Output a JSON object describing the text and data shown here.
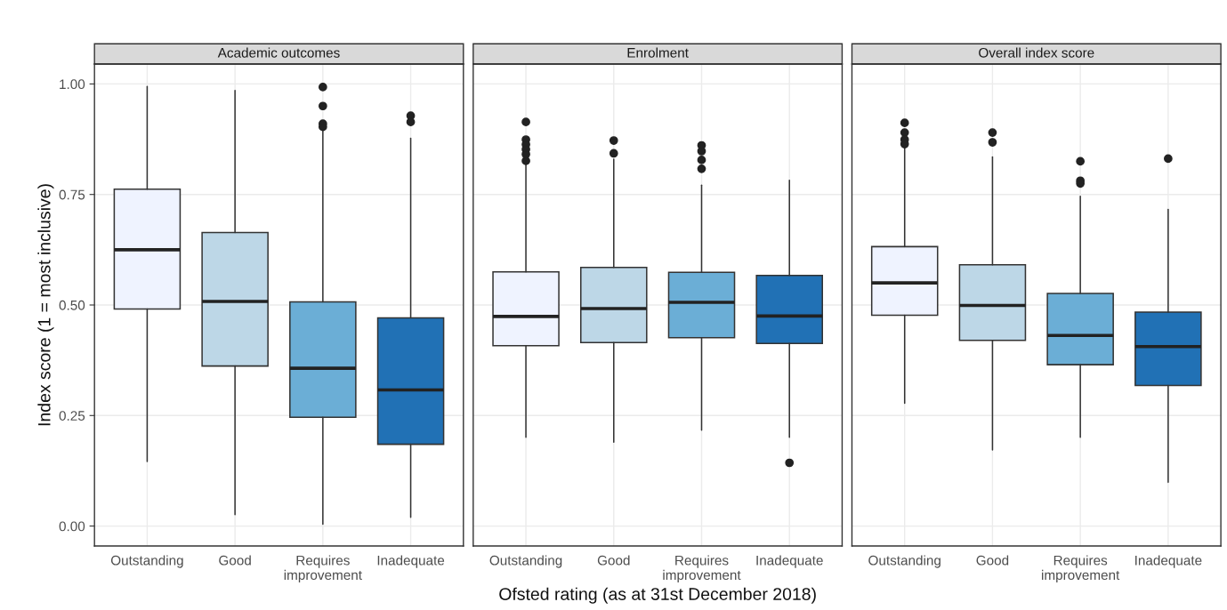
{
  "chart_data": [
    {
      "type": "box",
      "title": "Academic outcomes",
      "ylabel": "Index score (1 = most inclusive)",
      "categories": [
        "Outstanding",
        "Good",
        "Requires\nimprovement",
        "Inadequate"
      ],
      "colors": [
        "#eff3ff",
        "#bdd7e7",
        "#6baed6",
        "#2171b5"
      ],
      "ylim": [
        -0.045,
        1.045
      ],
      "yticks": [
        {
          "value": 0,
          "label": "0.00"
        },
        {
          "value": 0.25,
          "label": "0.25"
        },
        {
          "value": 0.5,
          "label": "0.50"
        },
        {
          "value": 0.75,
          "label": "0.75"
        },
        {
          "value": 1,
          "label": "1.00"
        }
      ],
      "grid": true,
      "boxes": [
        {
          "low": 0.146,
          "q1": 0.491,
          "median": 0.625,
          "q3": 0.762,
          "high": 0.994
        },
        {
          "low": 0.026,
          "q1": 0.362,
          "median": 0.508,
          "q3": 0.664,
          "high": 0.985
        },
        {
          "low": 0.004,
          "q1": 0.246,
          "median": 0.357,
          "q3": 0.507,
          "high": 0.895,
          "outliers": [
            0.993,
            0.95,
            0.91,
            0.903
          ]
        },
        {
          "low": 0.02,
          "q1": 0.185,
          "median": 0.308,
          "q3": 0.471,
          "high": 0.877,
          "outliers": [
            0.928,
            0.914
          ]
        }
      ]
    },
    {
      "type": "box",
      "title": "Enrolment",
      "xlabel": "Ofsted rating (as at 31st December 2018)",
      "categories": [
        "Outstanding",
        "Good",
        "Requires\nimprovement",
        "Inadequate"
      ],
      "colors": [
        "#eff3ff",
        "#bdd7e7",
        "#6baed6",
        "#2171b5"
      ],
      "ylim": [
        -0.045,
        1.045
      ],
      "yticks": [
        {
          "value": 0,
          "label": null
        },
        {
          "value": 0.25,
          "label": null
        },
        {
          "value": 0.5,
          "label": null
        },
        {
          "value": 0.75,
          "label": null
        },
        {
          "value": 1,
          "label": null
        }
      ],
      "grid": true,
      "tick_labels": "x",
      "boxes": [
        {
          "low": 0.201,
          "q1": 0.408,
          "median": 0.474,
          "q3": 0.575,
          "high": 0.819,
          "outliers": [
            0.914,
            0.874,
            0.863,
            0.852,
            0.841,
            0.826
          ]
        },
        {
          "low": 0.19,
          "q1": 0.415,
          "median": 0.492,
          "q3": 0.585,
          "high": 0.83,
          "outliers": [
            0.872,
            0.843
          ]
        },
        {
          "low": 0.217,
          "q1": 0.426,
          "median": 0.506,
          "q3": 0.574,
          "high": 0.771,
          "outliers": [
            0.861,
            0.848,
            0.828,
            0.808
          ]
        },
        {
          "low": 0.201,
          "q1": 0.413,
          "median": 0.475,
          "q3": 0.567,
          "high": 0.782,
          "outliers": [
            0.143
          ]
        }
      ]
    },
    {
      "type": "box",
      "title": "Overall index score",
      "categories": [
        "Outstanding",
        "Good",
        "Requires\nimprovement",
        "Inadequate"
      ],
      "colors": [
        "#eff3ff",
        "#bdd7e7",
        "#6baed6",
        "#2171b5"
      ],
      "ylim": [
        -0.045,
        1.045
      ],
      "yticks": [
        {
          "value": 0,
          "label": null
        },
        {
          "value": 0.25,
          "label": null
        },
        {
          "value": 0.5,
          "label": null
        },
        {
          "value": 0.75,
          "label": null
        },
        {
          "value": 1,
          "label": null
        }
      ],
      "grid": true,
      "tick_labels": "x",
      "boxes": [
        {
          "low": 0.278,
          "q1": 0.477,
          "median": 0.55,
          "q3": 0.632,
          "high": 0.859,
          "outliers": [
            0.912,
            0.89,
            0.874,
            0.864
          ]
        },
        {
          "low": 0.172,
          "q1": 0.42,
          "median": 0.499,
          "q3": 0.591,
          "high": 0.835,
          "outliers": [
            0.89,
            0.868
          ]
        },
        {
          "low": 0.201,
          "q1": 0.365,
          "median": 0.431,
          "q3": 0.526,
          "high": 0.746,
          "outliers": [
            0.825,
            0.781,
            0.775
          ]
        },
        {
          "low": 0.099,
          "q1": 0.318,
          "median": 0.406,
          "q3": 0.484,
          "high": 0.716,
          "outliers": [
            0.831
          ]
        }
      ]
    }
  ]
}
